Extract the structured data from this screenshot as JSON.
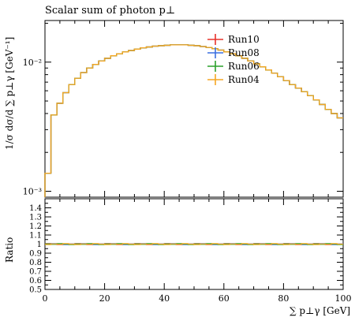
{
  "chart_data": [
    {
      "type": "line",
      "title": "Scalar sum of photon p⊥",
      "xlabel": "∑ p⊥γ [GeV]",
      "ylabel": "1/σ dσ/d ∑ p⊥γ [GeV⁻¹]",
      "xlim": [
        0,
        100
      ],
      "ylim": [
        0.0009,
        0.021
      ],
      "yscale": "log",
      "yticks": [
        0.001,
        0.01
      ],
      "ytick_labels": [
        "10⁻³",
        "10⁻²"
      ],
      "legend_position": "top-right",
      "x_bin_edges": [
        0,
        2,
        4,
        6,
        8,
        10,
        12,
        14,
        16,
        18,
        20,
        22,
        24,
        26,
        28,
        30,
        32,
        34,
        36,
        38,
        40,
        42,
        44,
        46,
        48,
        50,
        52,
        54,
        56,
        58,
        60,
        62,
        64,
        66,
        68,
        70,
        72,
        74,
        76,
        78,
        80,
        82,
        84,
        86,
        88,
        90,
        92,
        94,
        96,
        98,
        100
      ],
      "series": [
        {
          "name": "Run10",
          "color": "#e8322a",
          "values": [
            0.00138,
            0.0039,
            0.0048,
            0.0058,
            0.0067,
            0.0075,
            0.0083,
            0.009,
            0.0096,
            0.0102,
            0.0107,
            0.0112,
            0.0116,
            0.012,
            0.0123,
            0.0126,
            0.0129,
            0.0131,
            0.0133,
            0.0134,
            0.0135,
            0.0136,
            0.0136,
            0.0136,
            0.0135,
            0.0134,
            0.0132,
            0.013,
            0.0127,
            0.0124,
            0.012,
            0.0116,
            0.0112,
            0.0107,
            0.0102,
            0.0097,
            0.0092,
            0.0087,
            0.0082,
            0.0077,
            0.0072,
            0.0067,
            0.0063,
            0.0059,
            0.0055,
            0.0051,
            0.0047,
            0.0043,
            0.004,
            0.0037
          ]
        },
        {
          "name": "Run08",
          "color": "#3a6fe0",
          "values": [
            0.00138,
            0.0039,
            0.0048,
            0.0058,
            0.0067,
            0.0075,
            0.0083,
            0.009,
            0.0096,
            0.0102,
            0.0107,
            0.0112,
            0.0116,
            0.012,
            0.0123,
            0.0126,
            0.0129,
            0.0131,
            0.0133,
            0.0134,
            0.0135,
            0.0136,
            0.0136,
            0.0136,
            0.0135,
            0.0134,
            0.0132,
            0.013,
            0.0127,
            0.0124,
            0.012,
            0.0116,
            0.0112,
            0.0107,
            0.0102,
            0.0097,
            0.0092,
            0.0087,
            0.0082,
            0.0077,
            0.0072,
            0.0067,
            0.0063,
            0.0059,
            0.0055,
            0.0051,
            0.0047,
            0.0043,
            0.004,
            0.0037
          ]
        },
        {
          "name": "Run06",
          "color": "#2aa02a",
          "values": [
            0.00138,
            0.0039,
            0.0048,
            0.0058,
            0.0067,
            0.0075,
            0.0083,
            0.009,
            0.0096,
            0.0102,
            0.0107,
            0.0112,
            0.0116,
            0.012,
            0.0123,
            0.0126,
            0.0129,
            0.0131,
            0.0133,
            0.0134,
            0.0135,
            0.0136,
            0.0136,
            0.0136,
            0.0135,
            0.0134,
            0.0132,
            0.013,
            0.0127,
            0.0124,
            0.012,
            0.0116,
            0.0112,
            0.0107,
            0.0102,
            0.0097,
            0.0092,
            0.0087,
            0.0082,
            0.0077,
            0.0072,
            0.0067,
            0.0063,
            0.0059,
            0.0055,
            0.0051,
            0.0047,
            0.0043,
            0.004,
            0.0037
          ]
        },
        {
          "name": "Run04",
          "color": "#f5a623",
          "values": [
            0.00138,
            0.0039,
            0.0048,
            0.0058,
            0.0067,
            0.0075,
            0.0083,
            0.009,
            0.0096,
            0.0102,
            0.0107,
            0.0112,
            0.0116,
            0.012,
            0.0123,
            0.0126,
            0.0129,
            0.0131,
            0.0133,
            0.0134,
            0.0135,
            0.0136,
            0.0136,
            0.0136,
            0.0135,
            0.0134,
            0.0132,
            0.013,
            0.0127,
            0.0124,
            0.012,
            0.0116,
            0.0112,
            0.0107,
            0.0102,
            0.0097,
            0.0092,
            0.0087,
            0.0082,
            0.0077,
            0.0072,
            0.0067,
            0.0063,
            0.0059,
            0.0055,
            0.0051,
            0.0047,
            0.0043,
            0.004,
            0.0037
          ]
        }
      ]
    },
    {
      "type": "line",
      "ylabel": "Ratio",
      "xlabel": "∑ p⊥γ [GeV]",
      "xlim": [
        0,
        100
      ],
      "ylim": [
        0.5,
        1.5
      ],
      "yticks": [
        0.5,
        0.6,
        0.7,
        0.8,
        0.9,
        1,
        1.1,
        1.2,
        1.3,
        1.4
      ],
      "ytick_labels": [
        "0.5",
        "0.6",
        "0.7",
        "0.8",
        "0.9",
        "1",
        "1.1",
        "1.2",
        "1.3",
        "1.4"
      ],
      "xticks": [
        0,
        20,
        40,
        60,
        80,
        100
      ],
      "xtick_labels": [
        "0",
        "20",
        "40",
        "60",
        "80",
        "100"
      ],
      "series": [
        {
          "name": "Run10",
          "color": "#e8322a",
          "value": 1.0
        },
        {
          "name": "Run08",
          "color": "#3a6fe0",
          "value": 1.0
        },
        {
          "name": "Run06",
          "color": "#2aa02a",
          "value": 1.0
        },
        {
          "name": "Run04",
          "color": "#f5a623",
          "value": 1.0
        }
      ]
    }
  ]
}
